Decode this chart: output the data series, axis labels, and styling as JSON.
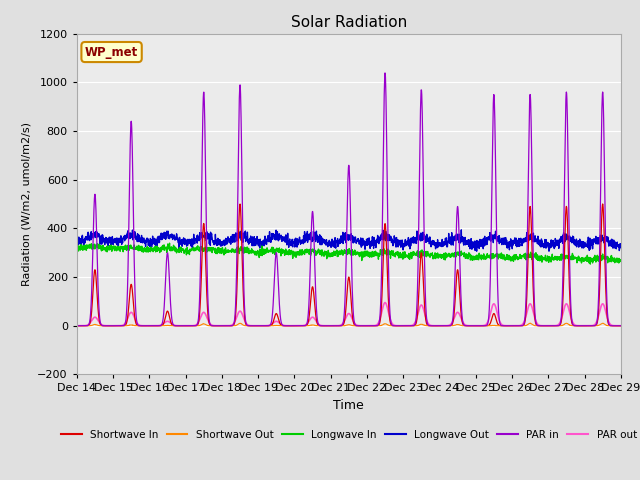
{
  "title": "Solar Radiation",
  "ylabel": "Radiation (W/m2, umol/m2/s)",
  "xlabel": "Time",
  "ylim": [
    -200,
    1200
  ],
  "yticks": [
    -200,
    0,
    200,
    400,
    600,
    800,
    1000,
    1200
  ],
  "x_labels": [
    "Dec 14",
    "Dec 15",
    "Dec 16",
    "Dec 17",
    "Dec 18",
    "Dec 19",
    "Dec 20",
    "Dec 21",
    "Dec 22",
    "Dec 23",
    "Dec 24",
    "Dec 25",
    "Dec 26",
    "Dec 27",
    "Dec 28",
    "Dec 29"
  ],
  "legend_labels": [
    "Shortwave In",
    "Shortwave Out",
    "Longwave In",
    "Longwave Out",
    "PAR in",
    "PAR out"
  ],
  "colors": {
    "shortwave_in": "#dd0000",
    "shortwave_out": "#ff8800",
    "longwave_in": "#00cc00",
    "longwave_out": "#0000cc",
    "par_in": "#9900cc",
    "par_out": "#ff55cc"
  },
  "background_color": "#e0e0e0",
  "plot_bg_color": "#ebebeb",
  "label_box_color": "#ffffcc",
  "label_box_edge": "#cc8800",
  "label_text": "WP_met",
  "n_days": 15,
  "pts_per_day": 144
}
